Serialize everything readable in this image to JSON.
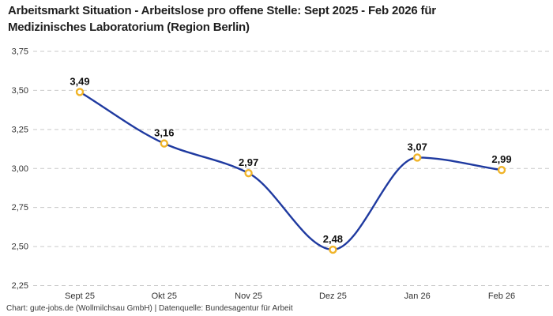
{
  "title": "Arbeitsmarkt Situation - Arbeitslose pro offene Stelle: Sept 2025 - Feb 2026 für\nMedizinisches Laboratorium (Region Berlin)",
  "footer": "Chart: gute-jobs.de (Wollmilchsau GmbH) | Datenquelle: Bundesagentur für Arbeit",
  "chart_data": {
    "type": "line",
    "title": "Arbeitsmarkt Situation - Arbeitslose pro offene Stelle: Sept 2025 - Feb 2026 für Medizinisches Laboratorium (Region Berlin)",
    "categories": [
      "Sept 25",
      "Okt 25",
      "Nov 25",
      "Dez 25",
      "Jan 26",
      "Feb 26"
    ],
    "values": [
      3.49,
      3.16,
      2.97,
      2.48,
      3.07,
      2.99
    ],
    "value_labels": [
      "3,49",
      "3,16",
      "2,97",
      "2,48",
      "3,07",
      "2,99"
    ],
    "y_ticks": [
      {
        "label": "3,75",
        "value": 3.75
      },
      {
        "label": "3,50",
        "value": 3.5
      },
      {
        "label": "3,25",
        "value": 3.25
      },
      {
        "label": "3,00",
        "value": 3.0
      },
      {
        "label": "2,75",
        "value": 2.75
      },
      {
        "label": "2,50",
        "value": 2.5
      },
      {
        "label": "2,25",
        "value": 2.25
      }
    ],
    "ylim": [
      2.25,
      3.75
    ],
    "xlabel": "",
    "ylabel": "",
    "grid": "horizontal-dashed",
    "legend": "none",
    "curve": "monotone",
    "colors": {
      "line": "#1f3aa0",
      "marker_ring": "#f0b429",
      "marker_fill": "#ffffff",
      "grid": "#c9c9c9",
      "title_text": "#1f1f1f",
      "axis_text": "#333333",
      "footer_text": "#3a3a3a",
      "point_label_text": "#111111",
      "background": "#ffffff"
    }
  }
}
